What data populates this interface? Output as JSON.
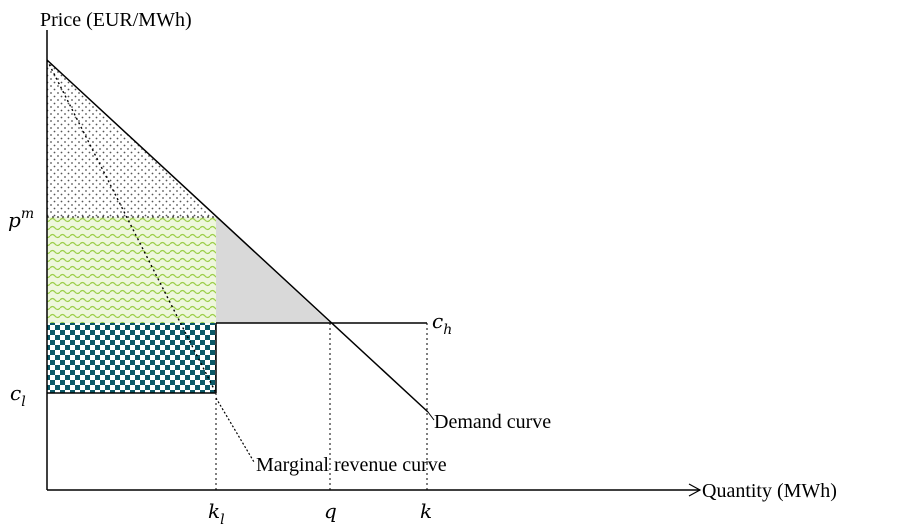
{
  "axes": {
    "y_label": "Price (EUR/MWh)",
    "x_label": "Quantity (MWh)"
  },
  "price_labels": {
    "pm": {
      "base": "p",
      "sup": "m"
    },
    "cl": {
      "base": "c",
      "sub": "l"
    },
    "ch": {
      "base": "c",
      "sub": "h"
    }
  },
  "quantity_labels": {
    "kl": {
      "base": "k",
      "sub": "l"
    },
    "q": "q",
    "k": "k"
  },
  "curves": {
    "demand": "Demand curve",
    "marginal_revenue": "Marginal revenue curve"
  }
}
